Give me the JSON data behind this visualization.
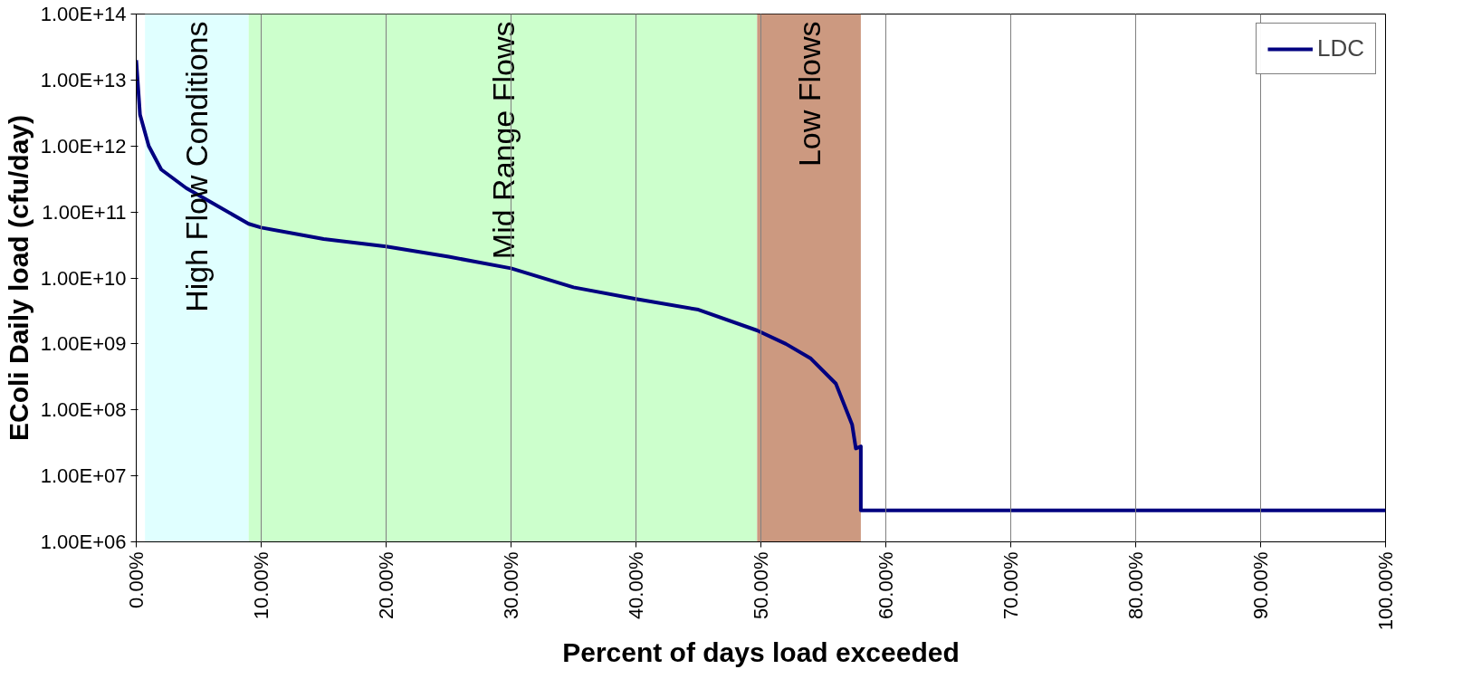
{
  "chart_data": {
    "type": "line",
    "xlabel": "Percent of days load exceeded",
    "ylabel": "EColi Daily load (cfu/day)",
    "log": "y",
    "grid": "x",
    "legend": "top right",
    "marker": "none",
    "line_style": "solid",
    "xlim": [
      0,
      100
    ],
    "ylim": [
      1000000,
      100000000000000
    ],
    "xticks": [
      {
        "value": 0,
        "label": "0.00%"
      },
      {
        "value": 10,
        "label": "10.00%"
      },
      {
        "value": 20,
        "label": "20.00%"
      },
      {
        "value": 30,
        "label": "30.00%"
      },
      {
        "value": 40,
        "label": "40.00%"
      },
      {
        "value": 50,
        "label": "50.00%"
      },
      {
        "value": 60,
        "label": "60.00%"
      },
      {
        "value": 70,
        "label": "70.00%"
      },
      {
        "value": 80,
        "label": "80.00%"
      },
      {
        "value": 90,
        "label": "90.00%"
      },
      {
        "value": 100,
        "label": "100.00%"
      }
    ],
    "yticks": [
      {
        "value": 1000000,
        "label": "1.00E+06"
      },
      {
        "value": 10000000,
        "label": "1.00E+07"
      },
      {
        "value": 100000000,
        "label": "1.00E+08"
      },
      {
        "value": 1000000000,
        "label": "1.00E+09"
      },
      {
        "value": 10000000000,
        "label": "1.00E+10"
      },
      {
        "value": 100000000000,
        "label": "1.00E+11"
      },
      {
        "value": 1000000000000,
        "label": "1.00E+12"
      },
      {
        "value": 10000000000000,
        "label": "1.00E+13"
      },
      {
        "value": 100000000000000,
        "label": "1.00E+14"
      }
    ],
    "bands": [
      {
        "axis": "x",
        "from": 0.7,
        "to": 9,
        "label": "High Flow Conditions",
        "color": "#e0ffff"
      },
      {
        "axis": "x",
        "from": 9,
        "to": 49.7,
        "label": "Mid Range Flows",
        "color": "#ccffcc"
      },
      {
        "axis": "x",
        "from": 49.7,
        "to": 58,
        "label": "Low Flows",
        "color": "#cc9980"
      }
    ],
    "series": [
      {
        "name": "LDC",
        "color": "#000080",
        "x": [
          0,
          0.3,
          1,
          2,
          4,
          6,
          9,
          10,
          15,
          20,
          25,
          30,
          35,
          40,
          45,
          49.7,
          52,
          54,
          56,
          57.3,
          57.6,
          58,
          58,
          100
        ],
        "values": [
          20000000000000,
          3000000000000,
          1000000000000,
          440000000000,
          230000000000,
          140000000000,
          66000000000,
          58000000000,
          39000000000,
          30000000000,
          21000000000,
          14000000000,
          7200000000,
          4800000000,
          3300000000,
          1600000000,
          1000000000,
          600000000,
          250000000,
          60000000,
          26000000,
          28000000,
          3000000,
          3000000
        ]
      }
    ]
  }
}
